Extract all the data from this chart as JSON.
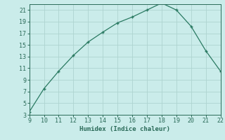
{
  "x": [
    9,
    10,
    11,
    12,
    13,
    14,
    15,
    16,
    17,
    18,
    19,
    20,
    21,
    22
  ],
  "y": [
    3.5,
    7.5,
    10.5,
    13.2,
    15.5,
    17.2,
    18.8,
    19.8,
    21.0,
    22.2,
    21.0,
    18.2,
    14.0,
    10.5
  ],
  "xlim": [
    9,
    22
  ],
  "ylim": [
    3,
    22
  ],
  "xticks": [
    9,
    10,
    11,
    12,
    13,
    14,
    15,
    16,
    17,
    18,
    19,
    20,
    21,
    22
  ],
  "yticks": [
    3,
    5,
    7,
    9,
    11,
    13,
    15,
    17,
    19,
    21
  ],
  "xlabel": "Humidex (Indice chaleur)",
  "line_color": "#2a7a62",
  "bg_color": "#caecea",
  "grid_color": "#aed4d0",
  "tick_color": "#2a6a58",
  "label_fontsize": 6.5,
  "tick_fontsize": 6.0
}
